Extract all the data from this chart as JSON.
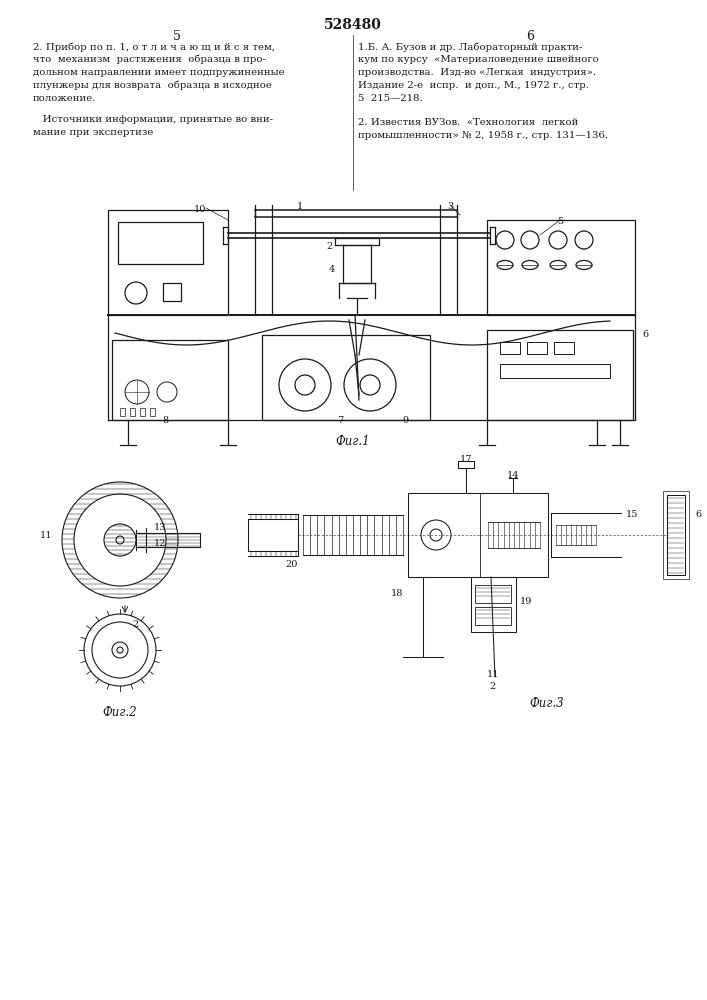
{
  "title": "528480",
  "page_left": "5",
  "page_right": "6",
  "bg_color": "#ffffff",
  "text_color": "#1a1a1a",
  "left_col": [
    "2. Прибор по п. 1, о т л и ч а ю щ и й с я тем,",
    "что  механизм  растяжения  образца в про-",
    "дольном направлении имеет подпружиненные",
    "плунжеры для возврата  образца в исходное",
    "положение."
  ],
  "left_col2": [
    "   Источники информации, принятые во вни-",
    "мание при экспертизе"
  ],
  "right_col": [
    "1.Б. А. Бузов и др. Лабораторный практи-",
    "кум по курсу  «Материаловедение швейного",
    "производства.  Изд-во «Легкая  индустрия».",
    "Издание 2-е  испр.  и доп., М., 1972 г., стр.",
    "5  215—218."
  ],
  "right_col2": [
    "2. Известия ВУЗов.  «Технология  легкой",
    "промышленности» № 2, 1958 г., стр. 131—136."
  ],
  "fig1_label": "Фиг.1",
  "fig2_label": "Фиг.2",
  "fig3_label": "Фиг.3"
}
